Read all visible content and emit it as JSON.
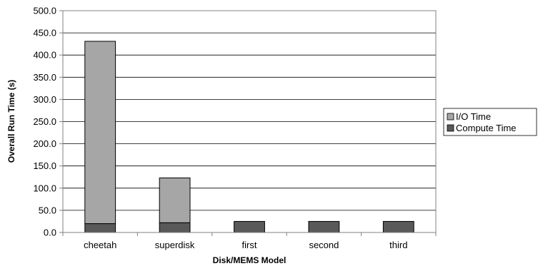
{
  "chart_data": {
    "type": "bar",
    "stacked": true,
    "title": "",
    "xlabel": "Disk/MEMS Model",
    "ylabel": "Overall Run Time (s)",
    "categories": [
      "cheetah",
      "superdisk",
      "first",
      "second",
      "third"
    ],
    "ylim": [
      0,
      500
    ],
    "yticks": [
      "0.0",
      "50.0",
      "100.0",
      "150.0",
      "200.0",
      "250.0",
      "300.0",
      "350.0",
      "400.0",
      "450.0",
      "500.0"
    ],
    "grid": true,
    "legend_position": "right",
    "series": [
      {
        "name": "Compute Time",
        "values": [
          20,
          22,
          25,
          25,
          25
        ],
        "color": "#595959"
      },
      {
        "name": "I/O Time",
        "values": [
          411,
          101,
          0,
          0,
          0
        ],
        "color": "#a6a6a6"
      }
    ],
    "legend": [
      {
        "label": "I/O Time",
        "color": "#a6a6a6"
      },
      {
        "label": "Compute Time",
        "color": "#595959"
      }
    ]
  }
}
